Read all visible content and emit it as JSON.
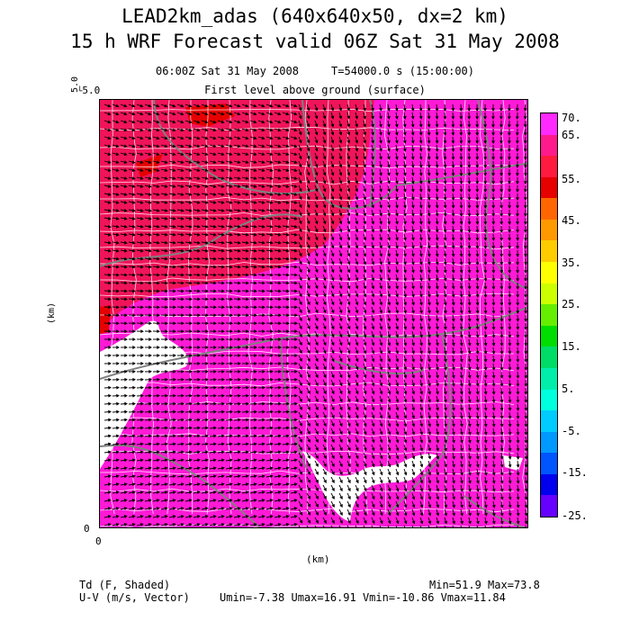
{
  "header": {
    "title_line1": "LEAD2km_adas (640x640x50, dx=2 km)",
    "title_line2": "15 h WRF Forecast valid 06Z Sat 31 May 2008",
    "time_info": "06:00Z Sat 31 May 2008     T=54000.0 s (15:00:00)",
    "level_info": "First level above ground (surface)"
  },
  "axes": {
    "x_label": "(km)",
    "y_label": "(km)",
    "x_tick_0": "0",
    "y_tick_0": "0",
    "y_tick_top_a": "5.0",
    "y_tick_top_b": "5.0"
  },
  "colorbar": {
    "labels": [
      "70.",
      "65.",
      "55.",
      "45.",
      "35.",
      "25.",
      "15.",
      "5.",
      "-5.",
      "-15.",
      "-25."
    ],
    "colors": [
      "#ff2aff",
      "#ff1a8c",
      "#ff1a40",
      "#e60000",
      "#ff6600",
      "#ff9900",
      "#ffcc00",
      "#ffff00",
      "#ccff00",
      "#66ee00",
      "#00dd00",
      "#00dd66",
      "#00eeaa",
      "#00ffdd",
      "#00ccff",
      "#0099ff",
      "#0055ff",
      "#0000ee",
      "#6600ff"
    ]
  },
  "footer": {
    "field_label": "Td (F, Shaded)",
    "minmax": "Min=51.9 Max=73.8",
    "vector_label": "U-V (m/s, Vector)",
    "vector_stats": "Umin=-7.38 Umax=16.91 Vmin=-10.86 Vmax=11.84"
  },
  "map_colors": {
    "magenta": "#ff1ad6",
    "pink_red": "#f0145a",
    "red": "#e60000",
    "no_data": "#ffffff",
    "county_lines": "#ffffff",
    "state_lines": "#808080"
  }
}
